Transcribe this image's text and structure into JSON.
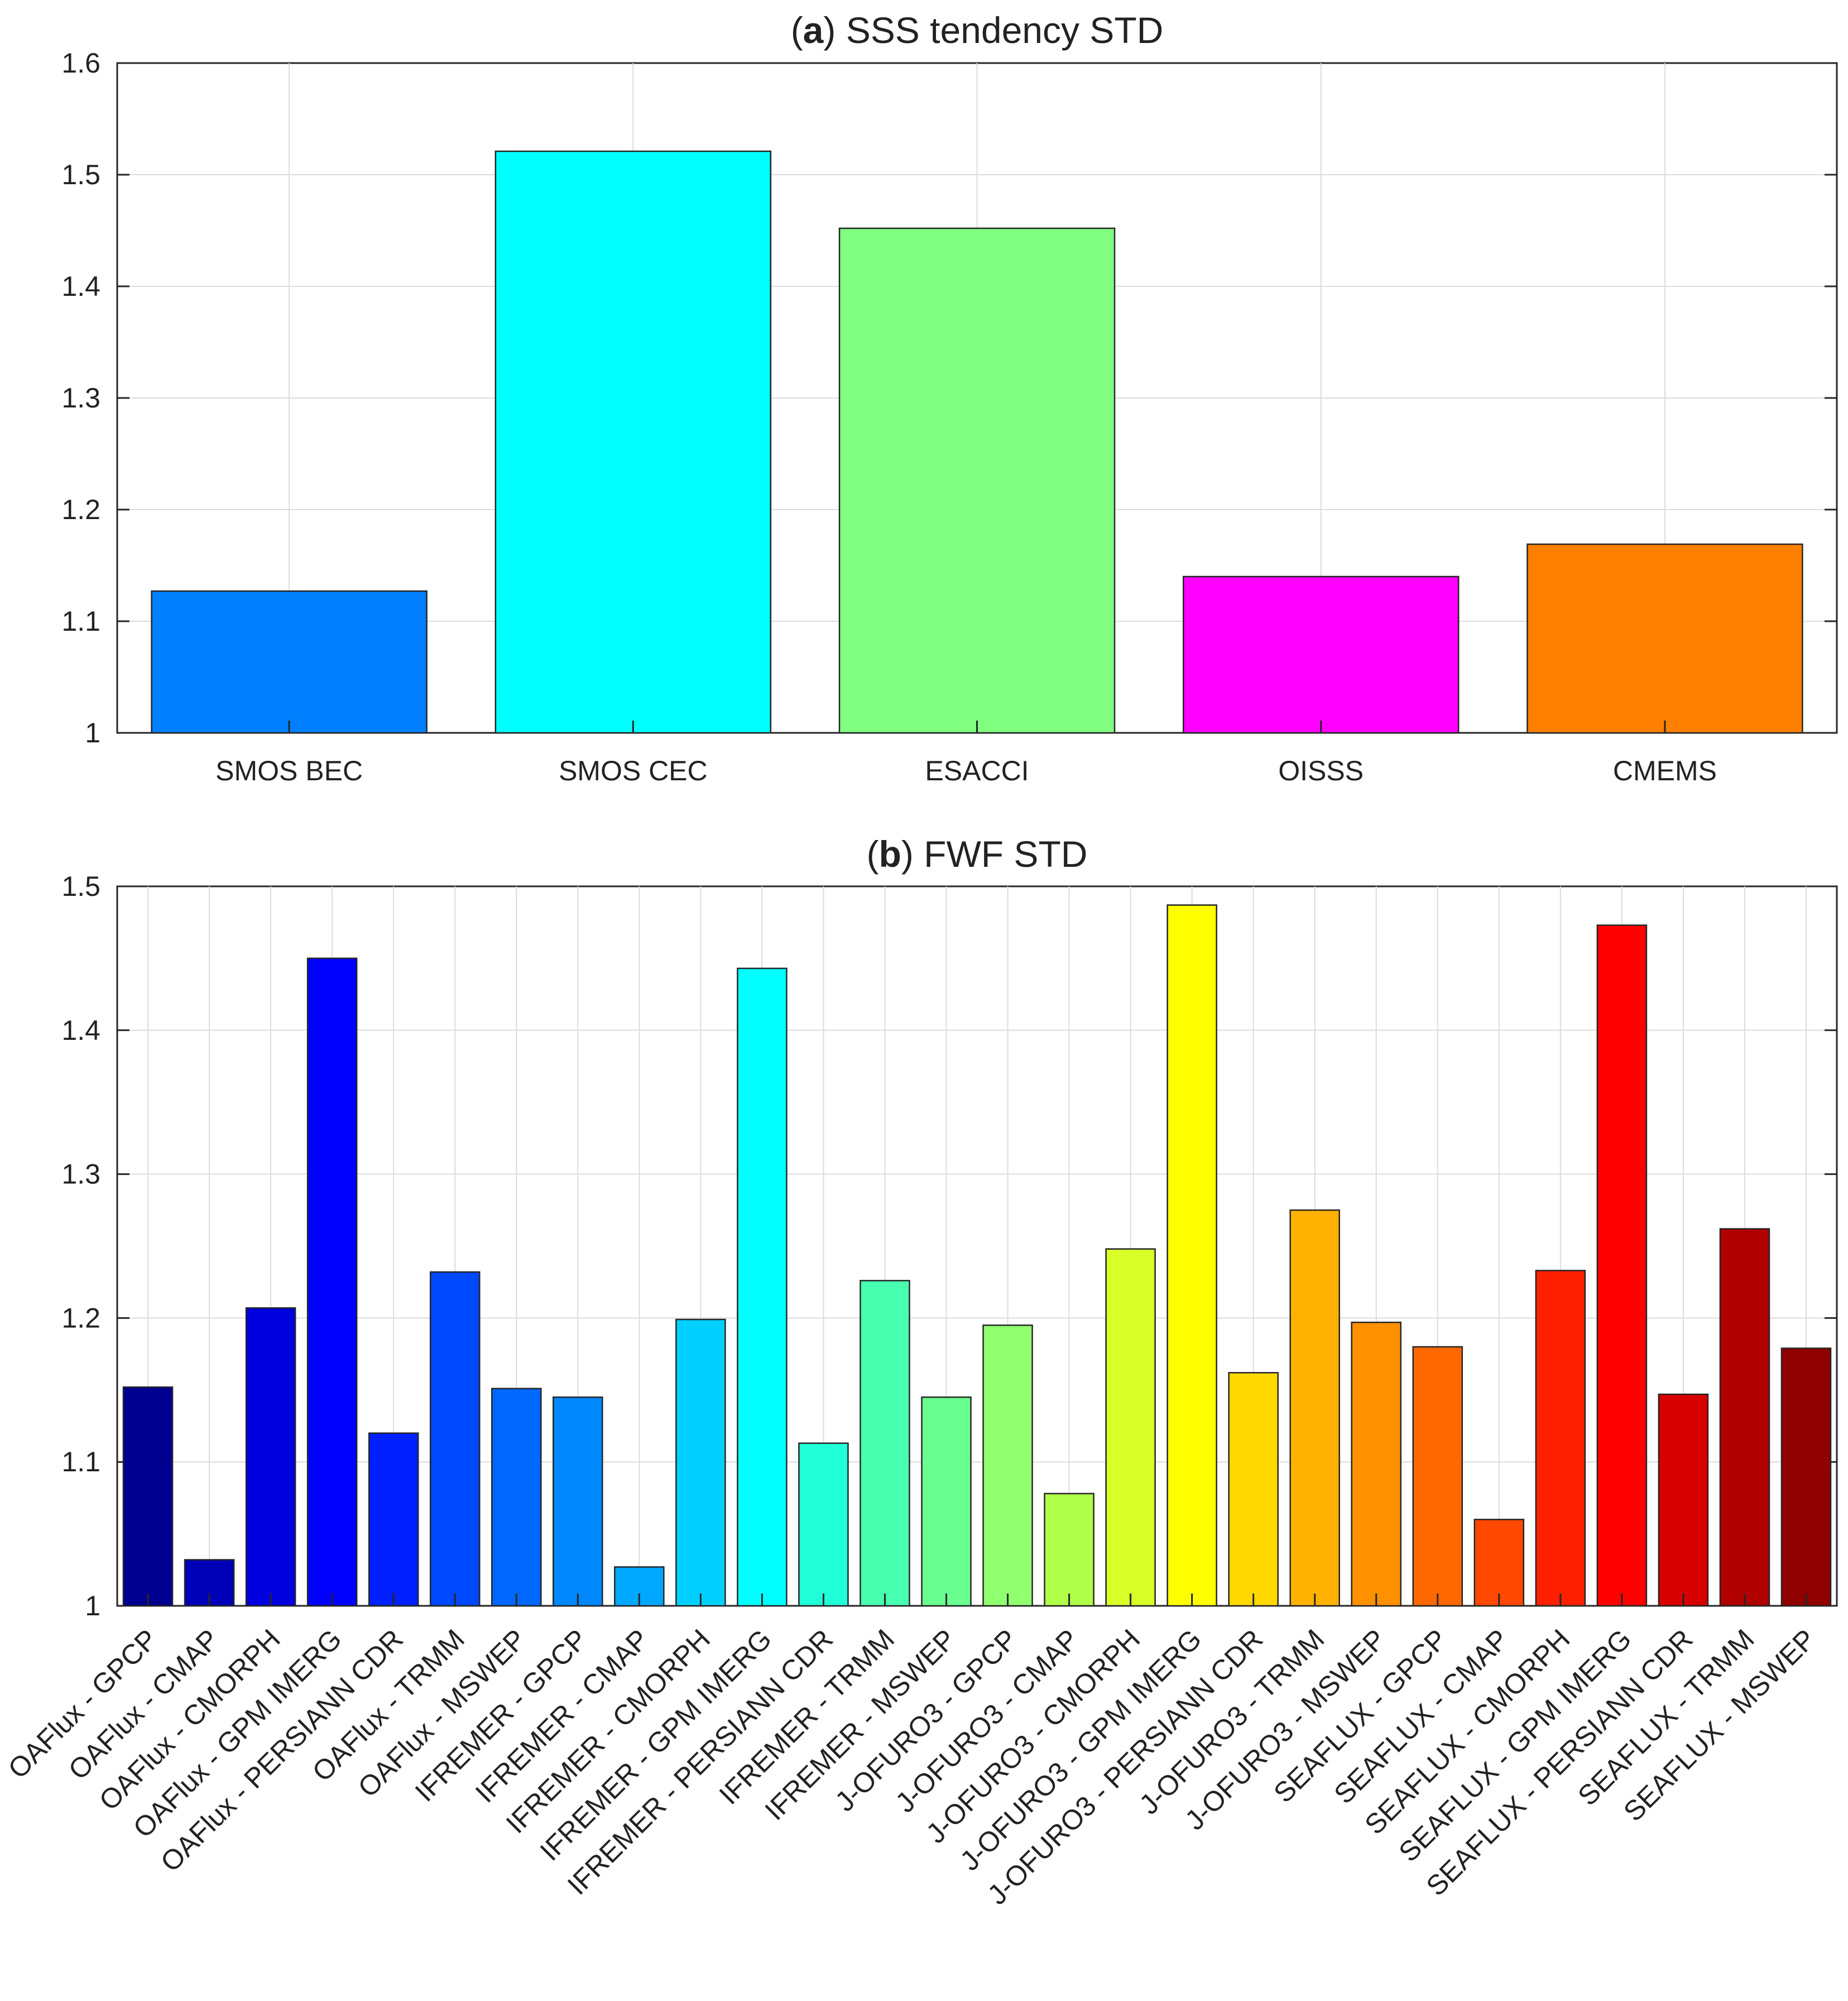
{
  "chart_data": [
    {
      "type": "bar",
      "title_prefix": "(",
      "title_letter": "a",
      "title_rest": ") SSS tendency STD",
      "xlabel": "",
      "ylabel": "",
      "ylim": [
        1,
        1.6
      ],
      "yticks": [
        "1",
        "1.1",
        "1.2",
        "1.3",
        "1.4",
        "1.5",
        "1.6"
      ],
      "grid": true,
      "categories": [
        "SMOS BEC",
        "SMOS CEC",
        "ESACCI",
        "OISSS",
        "CMEMS"
      ],
      "values": [
        1.127,
        1.521,
        1.452,
        1.14,
        1.169
      ],
      "colors": [
        "#0080ff",
        "#00ffff",
        "#80ff80",
        "#ff00ff",
        "#ff8000"
      ]
    },
    {
      "type": "bar",
      "title_prefix": "(",
      "title_letter": "b",
      "title_rest": ") FWF STD",
      "xlabel": "",
      "ylabel": "",
      "ylim": [
        1,
        1.5
      ],
      "yticks": [
        "1",
        "1.1",
        "1.2",
        "1.3",
        "1.4",
        "1.5"
      ],
      "grid": true,
      "categories": [
        "OAFlux - GPCP",
        "OAFlux - CMAP",
        "OAFlux - CMORPH",
        "OAFlux - GPM IMERG",
        "OAFlux - PERSIANN CDR",
        "OAFlux - TRMM",
        "OAFlux - MSWEP",
        "IFREMER - GPCP",
        "IFREMER - CMAP",
        "IFREMER - CMORPH",
        "IFREMER - GPM IMERG",
        "IFREMER - PERSIANN CDR",
        "IFREMER - TRMM",
        "IFREMER - MSWEP",
        "J-OFURO3 - GPCP",
        "J-OFURO3 - CMAP",
        "J-OFURO3 - CMORPH",
        "J-OFURO3 - GPM IMERG",
        "J-OFURO3 - PERSIANN CDR",
        "J-OFURO3 - TRMM",
        "J-OFURO3 - MSWEP",
        "SEAFLUX - GPCP",
        "SEAFLUX - CMAP",
        "SEAFLUX - CMORPH",
        "SEAFLUX - GPM IMERG",
        "SEAFLUX - PERSIANN CDR",
        "SEAFLUX - TRMM",
        "SEAFLUX - MSWEP"
      ],
      "values": [
        1.152,
        1.032,
        1.207,
        1.45,
        1.12,
        1.232,
        1.151,
        1.145,
        1.027,
        1.199,
        1.443,
        1.113,
        1.226,
        1.145,
        1.195,
        1.078,
        1.248,
        1.487,
        1.162,
        1.275,
        1.197,
        1.18,
        1.06,
        1.233,
        1.473,
        1.147,
        1.262,
        1.179
      ],
      "colors": [
        "#000090",
        "#0000b8",
        "#0000de",
        "#0000ff",
        "#0020ff",
        "#0048ff",
        "#0068ff",
        "#0088ff",
        "#00a8ff",
        "#00d0ff",
        "#00ffff",
        "#20ffd8",
        "#48ffb0",
        "#68ff90",
        "#90ff70",
        "#b0ff48",
        "#d8ff28",
        "#ffff00",
        "#ffd800",
        "#ffb000",
        "#ff9000",
        "#ff6800",
        "#ff4800",
        "#ff2000",
        "#ff0000",
        "#d80000",
        "#b00000",
        "#900000"
      ]
    }
  ]
}
